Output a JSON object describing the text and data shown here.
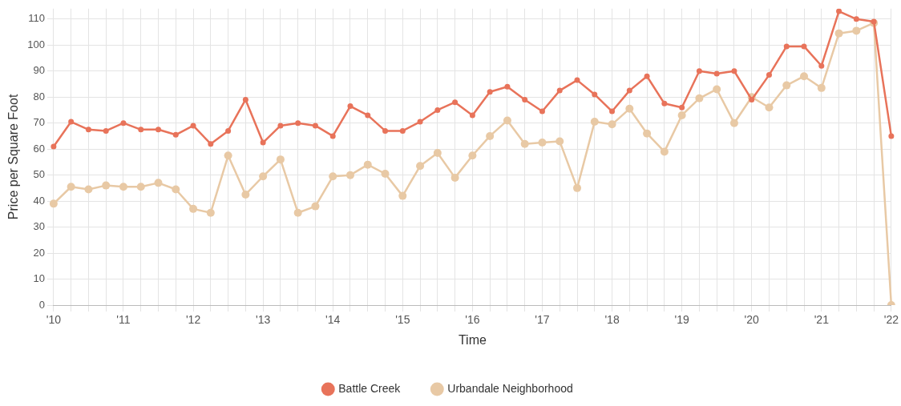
{
  "chart_data": {
    "type": "line",
    "xlabel": "Time",
    "ylabel": "Price per Square Foot",
    "categories": [
      "'10",
      null,
      null,
      null,
      "'11",
      null,
      null,
      null,
      "'12",
      null,
      null,
      null,
      "'13",
      null,
      null,
      null,
      "'14",
      null,
      null,
      null,
      "'15",
      null,
      null,
      null,
      "'16",
      null,
      null,
      null,
      "'17",
      null,
      null,
      null,
      "'18",
      null,
      null,
      null,
      "'19",
      null,
      null,
      null,
      "'20",
      null,
      null,
      null,
      "'21",
      null,
      null,
      null,
      "'22"
    ],
    "series": [
      {
        "name": "Battle Creek",
        "color": "#e8735a",
        "values": [
          61,
          70.5,
          67.5,
          67,
          70,
          67.5,
          67.5,
          65.5,
          69,
          62,
          67,
          79,
          62.5,
          69,
          70,
          69,
          65,
          76.5,
          73,
          67,
          67,
          70.5,
          75,
          78,
          73,
          82,
          84,
          79,
          74.5,
          82.5,
          86.5,
          81,
          74.5,
          82.5,
          88,
          77.5,
          76,
          90,
          89,
          90,
          79,
          88.5,
          99.5,
          99.5,
          92,
          113,
          110,
          109,
          65
        ]
      },
      {
        "name": "Urbandale Neighborhood",
        "color": "#e8c9a5",
        "values": [
          39,
          45.5,
          44.5,
          46,
          45.5,
          45.5,
          47,
          44.5,
          37,
          35.5,
          57.5,
          42.5,
          49.5,
          56,
          35.5,
          38,
          49.5,
          50,
          54,
          50.5,
          42,
          53.5,
          58.5,
          49,
          57.5,
          65,
          71,
          62,
          62.5,
          63,
          45,
          70.5,
          69.5,
          75.5,
          66,
          59,
          73,
          79.5,
          83,
          70,
          80,
          76,
          84.5,
          88,
          83.5,
          104.5,
          105.5,
          108.5,
          0
        ]
      }
    ],
    "ylim": [
      0,
      114
    ],
    "yticks": [
      0,
      10,
      20,
      30,
      40,
      50,
      60,
      70,
      80,
      90,
      100,
      110
    ],
    "grid": true,
    "legend": "bottom",
    "marker": "circle",
    "line_style": "solid"
  }
}
